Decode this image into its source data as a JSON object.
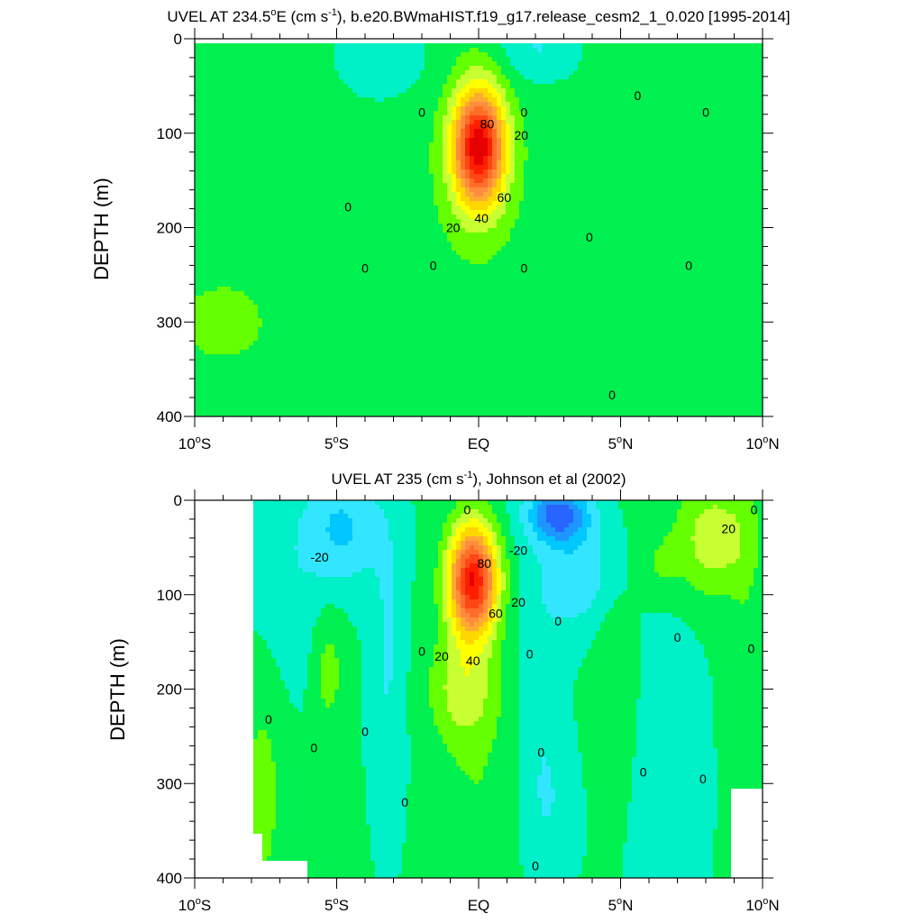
{
  "chart_data": [
    {
      "type": "contour",
      "title": "UVEL AT 234.5°E (cm s-1), b.e20.BWmaHIST.f19_g17.release_cesm2_1_0.020 [1995-2014]",
      "title_parts": {
        "pre": "UVEL AT 234.5",
        "deg": "o",
        "mid": "E (cm s",
        "sup": "-1",
        "post": "), b.e20.BWmaHIST.f19_g17.release_cesm2_1_0.020 [1995-2014]"
      },
      "ylabel": "DEPTH (m)",
      "xlabel": "",
      "x_ticks": [
        {
          "value": -10,
          "num": "10",
          "hemi": "S"
        },
        {
          "value": -5,
          "num": "5",
          "hemi": "S"
        },
        {
          "value": 0,
          "num": "EQ",
          "hemi": ""
        },
        {
          "value": 5,
          "num": "5",
          "hemi": "N"
        },
        {
          "value": 10,
          "num": "10",
          "hemi": "N"
        }
      ],
      "y_ticks": [
        0,
        100,
        200,
        300,
        400
      ],
      "xlim": [
        -10,
        10
      ],
      "ylim": [
        400,
        0
      ],
      "contour_interval_cm_s": 10,
      "core": {
        "lat": 0,
        "depth_m": 115,
        "max_cm_s": 100
      },
      "contour_labels": [
        {
          "text": "0",
          "lat": -4.6,
          "depth": 178
        },
        {
          "text": "0",
          "lat": -4.0,
          "depth": 243
        },
        {
          "text": "0",
          "lat": -2.0,
          "depth": 78
        },
        {
          "text": "0",
          "lat": -1.6,
          "depth": 240
        },
        {
          "text": "0",
          "lat": 1.6,
          "depth": 78
        },
        {
          "text": "0",
          "lat": 1.6,
          "depth": 243
        },
        {
          "text": "0",
          "lat": 3.9,
          "depth": 210
        },
        {
          "text": "0",
          "lat": 4.7,
          "depth": 377
        },
        {
          "text": "0",
          "lat": 5.6,
          "depth": 60
        },
        {
          "text": "0",
          "lat": 7.4,
          "depth": 240
        },
        {
          "text": "0",
          "lat": 8.0,
          "depth": 78
        },
        {
          "text": "20",
          "lat": 1.5,
          "depth": 102
        },
        {
          "text": "20",
          "lat": -0.9,
          "depth": 200
        },
        {
          "text": "40",
          "lat": 0.1,
          "depth": 190
        },
        {
          "text": "60",
          "lat": 0.9,
          "depth": 168
        },
        {
          "text": "80",
          "lat": 0.3,
          "depth": 90
        }
      ]
    },
    {
      "type": "contour",
      "title": "UVEL AT 235 (cm s-1), Johnson et al (2002)",
      "title_parts": {
        "pre": "UVEL AT 235",
        "deg": "",
        "mid": " (cm s",
        "sup": "-1",
        "post": "), Johnson et al (2002)"
      },
      "ylabel": "DEPTH (m)",
      "xlabel": "",
      "x_ticks": [
        {
          "value": -10,
          "num": "10",
          "hemi": "S"
        },
        {
          "value": -5,
          "num": "5",
          "hemi": "S"
        },
        {
          "value": 0,
          "num": "EQ",
          "hemi": ""
        },
        {
          "value": 5,
          "num": "5",
          "hemi": "N"
        },
        {
          "value": 10,
          "num": "10",
          "hemi": "N"
        }
      ],
      "y_ticks": [
        0,
        100,
        200,
        300,
        400
      ],
      "xlim": [
        -10,
        10
      ],
      "ylim": [
        400,
        0
      ],
      "contour_interval_cm_s": 10,
      "core": {
        "lat": -0.2,
        "depth_m": 85,
        "max_cm_s": 100
      },
      "contour_labels": [
        {
          "text": "0",
          "lat": -0.4,
          "depth": 10
        },
        {
          "text": "0",
          "lat": -2.0,
          "depth": 160
        },
        {
          "text": "0",
          "lat": -7.4,
          "depth": 232
        },
        {
          "text": "0",
          "lat": -5.8,
          "depth": 262
        },
        {
          "text": "0",
          "lat": -4.0,
          "depth": 245
        },
        {
          "text": "0",
          "lat": -2.6,
          "depth": 320
        },
        {
          "text": "0",
          "lat": 1.8,
          "depth": 163
        },
        {
          "text": "0",
          "lat": 2.2,
          "depth": 267
        },
        {
          "text": "0",
          "lat": 2.0,
          "depth": 387
        },
        {
          "text": "0",
          "lat": 2.8,
          "depth": 128
        },
        {
          "text": "0",
          "lat": 5.8,
          "depth": 288
        },
        {
          "text": "0",
          "lat": 7.0,
          "depth": 145
        },
        {
          "text": "0",
          "lat": 7.9,
          "depth": 295
        },
        {
          "text": "0",
          "lat": 9.7,
          "depth": 10
        },
        {
          "text": "0",
          "lat": 9.6,
          "depth": 157
        },
        {
          "text": "-20",
          "lat": -5.6,
          "depth": 60
        },
        {
          "text": "-20",
          "lat": 1.4,
          "depth": 53
        },
        {
          "text": "20",
          "lat": 8.8,
          "depth": 30
        },
        {
          "text": "20",
          "lat": 1.4,
          "depth": 108
        },
        {
          "text": "20",
          "lat": -1.3,
          "depth": 165
        },
        {
          "text": "40",
          "lat": -0.2,
          "depth": 170
        },
        {
          "text": "60",
          "lat": 0.6,
          "depth": 120
        },
        {
          "text": "80",
          "lat": 0.2,
          "depth": 67
        }
      ]
    }
  ],
  "color_scale": [
    "#1e1eff",
    "#2864ff",
    "#1e96ff",
    "#00c8ff",
    "#32e6ff",
    "#00f0c8",
    "#00f050",
    "#64ff00",
    "#c8ff32",
    "#ffff00",
    "#ffd700",
    "#ffaa32",
    "#ff8c3c",
    "#ff6e28",
    "#ff4614",
    "#ff1e00",
    "#e60000"
  ],
  "color_levels_cm_s": [
    -50,
    -40,
    -30,
    -20,
    -10,
    0,
    10,
    20,
    30,
    40,
    50,
    60,
    70,
    80,
    90,
    100
  ]
}
